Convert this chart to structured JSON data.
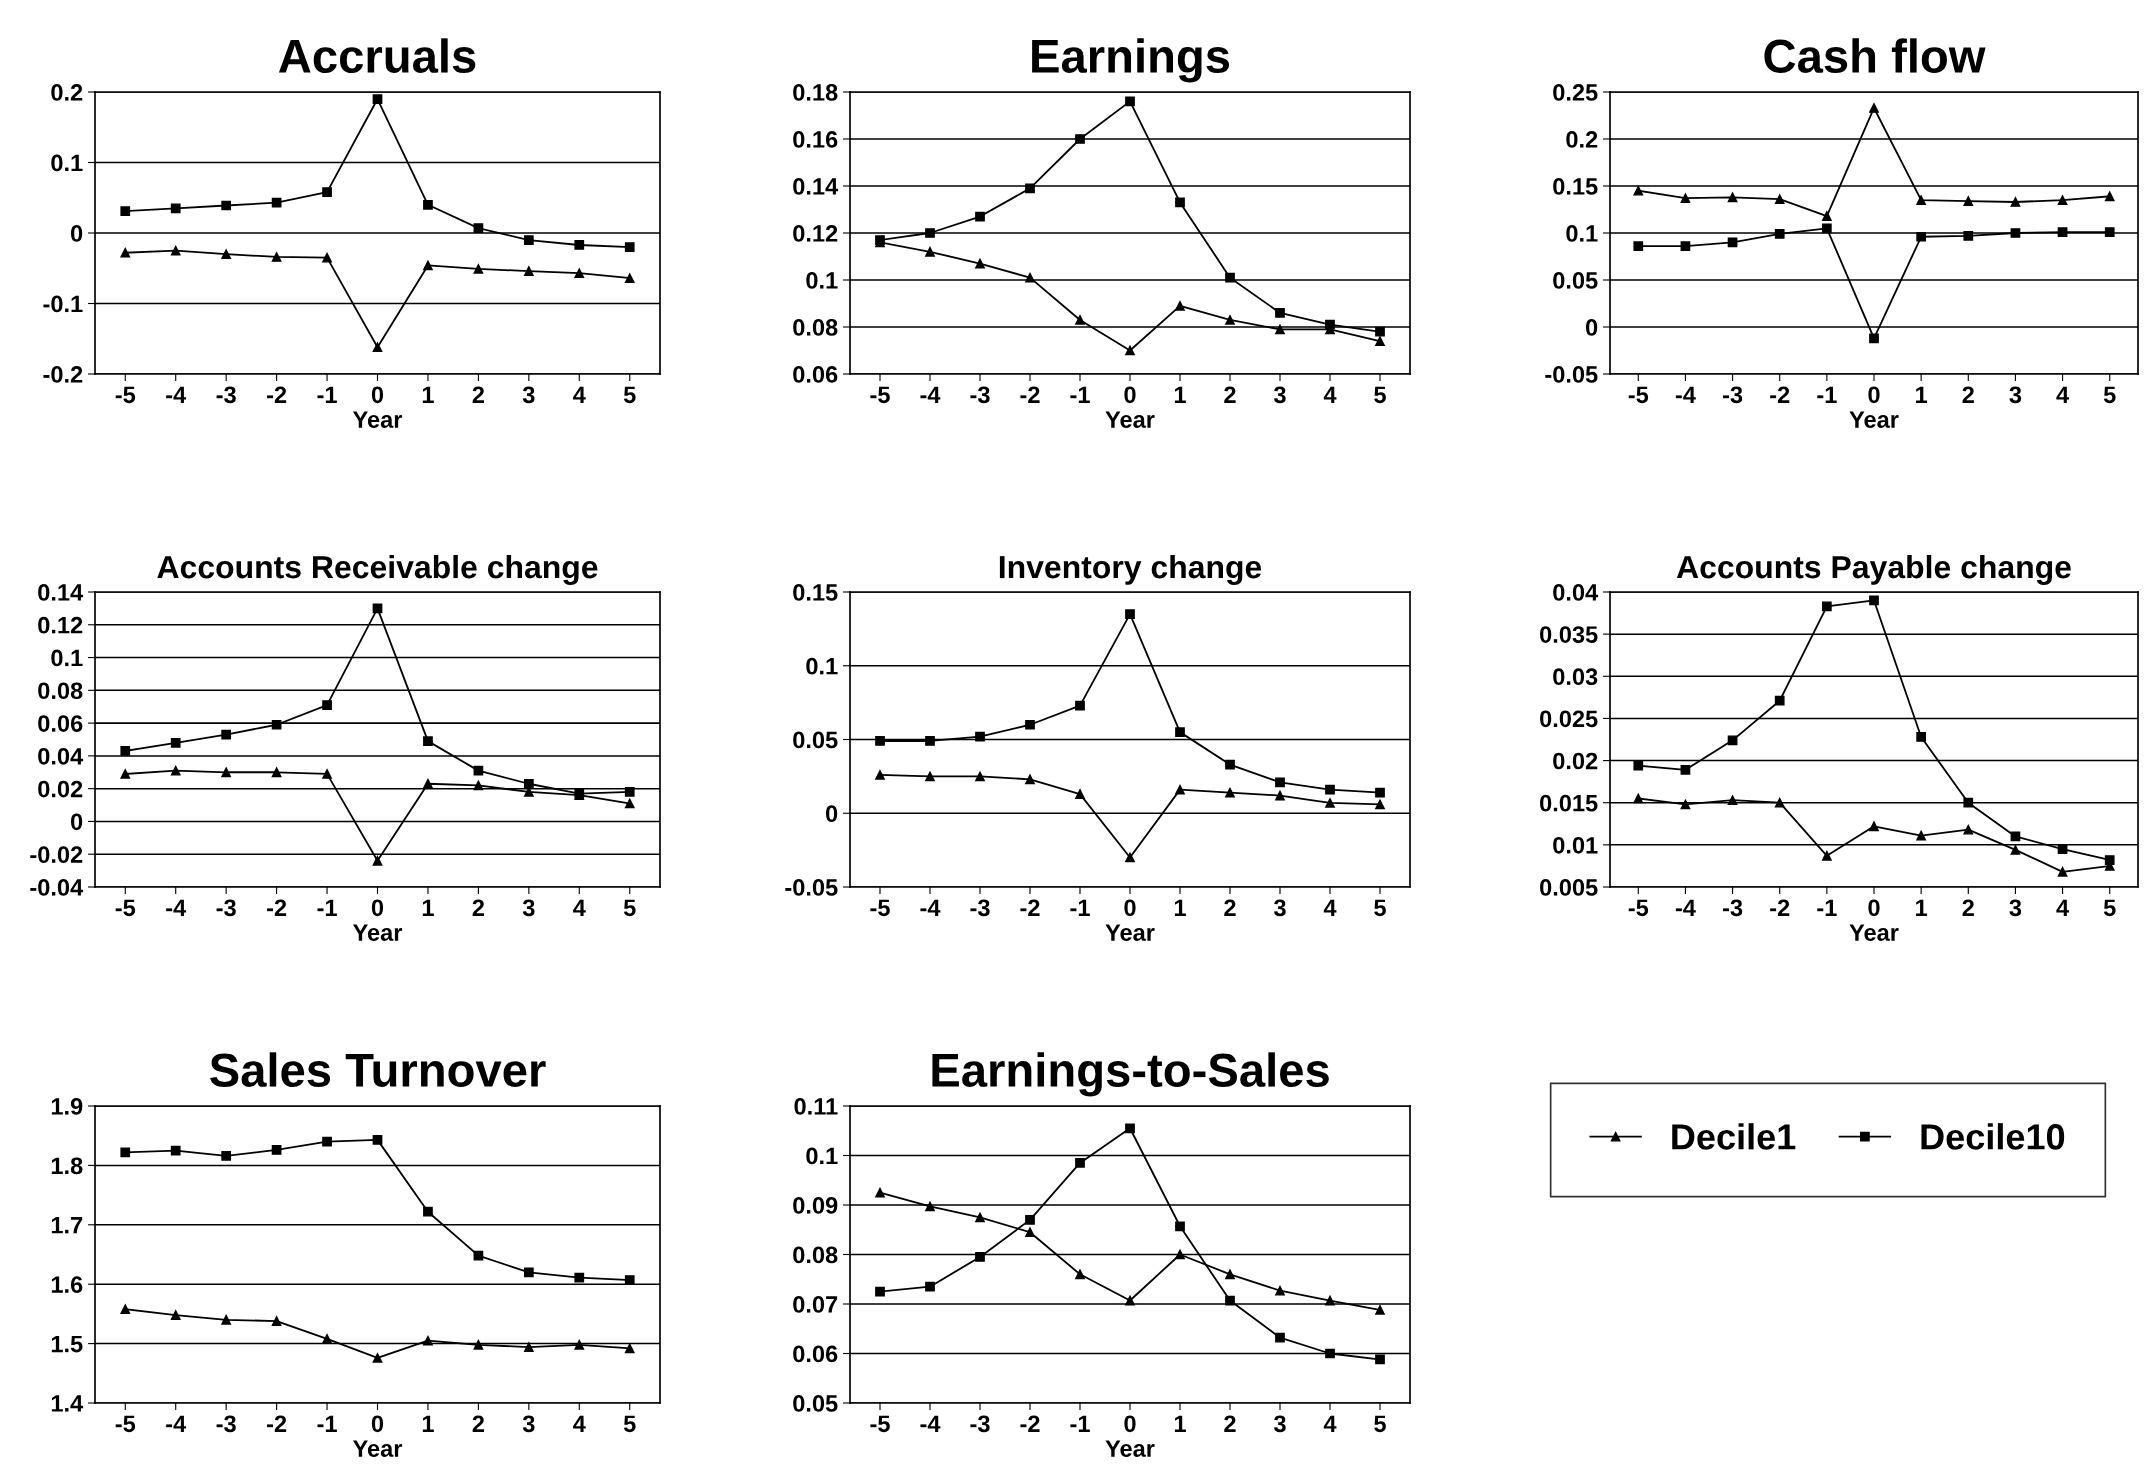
{
  "chart_data": [
    {
      "type": "line",
      "title": "Accruals",
      "xlabel": "Year",
      "categories": [
        "-5",
        "-4",
        "-3",
        "-2",
        "-1",
        "0",
        "1",
        "2",
        "3",
        "4",
        "5"
      ],
      "ylim": [
        -0.2,
        0.2
      ],
      "yticks": [
        -0.2,
        -0.1,
        0,
        0.1,
        0.2
      ],
      "grid": "y",
      "legend": "bottom right",
      "series": [
        {
          "name": "Decile1",
          "color": "#000000",
          "marker": "triangle",
          "values": [
            -0.028,
            -0.025,
            -0.03,
            -0.034,
            -0.035,
            -0.162,
            -0.046,
            -0.051,
            -0.054,
            -0.057,
            -0.064
          ]
        },
        {
          "name": "Decile10",
          "color": "#000000",
          "marker": "square",
          "values": [
            0.031,
            0.035,
            0.039,
            0.043,
            0.058,
            0.19,
            0.04,
            0.007,
            -0.01,
            -0.017,
            -0.02
          ]
        }
      ]
    },
    {
      "type": "line",
      "title": "Earnings",
      "xlabel": "Year",
      "categories": [
        "-5",
        "-4",
        "-3",
        "-2",
        "-1",
        "0",
        "1",
        "2",
        "3",
        "4",
        "5"
      ],
      "ylim": [
        0.06,
        0.18
      ],
      "yticks": [
        0.06,
        0.08,
        0.1,
        0.12,
        0.14,
        0.16,
        0.18
      ],
      "grid": "y",
      "series": [
        {
          "color": "#000000",
          "marker": "triangle",
          "values": [
            0.116,
            0.112,
            0.107,
            0.101,
            0.083,
            0.07,
            0.089,
            0.083,
            0.079,
            0.079,
            0.074
          ]
        },
        {
          "color": "#000000",
          "marker": "square",
          "values": [
            0.117,
            0.12,
            0.127,
            0.139,
            0.16,
            0.176,
            0.133,
            0.101,
            0.086,
            0.081,
            0.078
          ]
        }
      ]
    },
    {
      "type": "line",
      "title": "Cash flow",
      "xlabel": "Year",
      "categories": [
        "-5",
        "-4",
        "-3",
        "-2",
        "-1",
        "0",
        "1",
        "2",
        "3",
        "4",
        "5"
      ],
      "ylim": [
        -0.05,
        0.25
      ],
      "yticks": [
        -0.05,
        0,
        0.05,
        0.1,
        0.15,
        0.2,
        0.25
      ],
      "grid": "y",
      "series": [
        {
          "color": "#000000",
          "marker": "triangle",
          "values": [
            0.145,
            0.137,
            0.138,
            0.136,
            0.118,
            0.233,
            0.135,
            0.134,
            0.133,
            0.135,
            0.139
          ]
        },
        {
          "color": "#000000",
          "marker": "square",
          "values": [
            0.086,
            0.086,
            0.09,
            0.099,
            0.105,
            -0.012,
            0.096,
            0.097,
            0.1,
            0.101,
            0.101
          ]
        }
      ]
    },
    {
      "type": "line",
      "title": "Accounts Receivable change",
      "xlabel": "Year",
      "categories": [
        "-5",
        "-4",
        "-3",
        "-2",
        "-1",
        "0",
        "1",
        "2",
        "3",
        "4",
        "5"
      ],
      "ylim": [
        -0.04,
        0.14
      ],
      "yticks": [
        -0.04,
        -0.02,
        0,
        0.02,
        0.04,
        0.06,
        0.08,
        0.1,
        0.12,
        0.14
      ],
      "grid": "y",
      "series": [
        {
          "color": "#000000",
          "marker": "triangle",
          "values": [
            0.029,
            0.031,
            0.03,
            0.03,
            0.029,
            -0.024,
            0.023,
            0.022,
            0.018,
            0.016,
            0.011
          ]
        },
        {
          "color": "#000000",
          "marker": "square",
          "values": [
            0.043,
            0.048,
            0.053,
            0.059,
            0.071,
            0.13,
            0.049,
            0.031,
            0.023,
            0.017,
            0.018
          ]
        }
      ]
    },
    {
      "type": "line",
      "title": "Inventory change",
      "xlabel": "Year",
      "categories": [
        "-5",
        "-4",
        "-3",
        "-2",
        "-1",
        "0",
        "1",
        "2",
        "3",
        "4",
        "5"
      ],
      "ylim": [
        -0.05,
        0.15
      ],
      "yticks": [
        -0.05,
        0,
        0.05,
        0.1,
        0.15
      ],
      "grid": "y",
      "series": [
        {
          "color": "#000000",
          "marker": "triangle",
          "values": [
            0.026,
            0.025,
            0.025,
            0.023,
            0.013,
            -0.03,
            0.016,
            0.014,
            0.012,
            0.007,
            0.006
          ]
        },
        {
          "color": "#000000",
          "marker": "square",
          "values": [
            0.049,
            0.049,
            0.052,
            0.06,
            0.073,
            0.135,
            0.055,
            0.033,
            0.021,
            0.016,
            0.014
          ]
        }
      ]
    },
    {
      "type": "line",
      "title": "Accounts Payable change",
      "xlabel": "Year",
      "categories": [
        "-5",
        "-4",
        "-3",
        "-2",
        "-1",
        "0",
        "1",
        "2",
        "3",
        "4",
        "5"
      ],
      "ylim": [
        0.005,
        0.04
      ],
      "yticks": [
        0.005,
        0.01,
        0.015,
        0.02,
        0.025,
        0.03,
        0.035,
        0.04
      ],
      "grid": "y",
      "series": [
        {
          "color": "#000000",
          "marker": "triangle",
          "values": [
            0.0155,
            0.0148,
            0.0153,
            0.015,
            0.0087,
            0.0122,
            0.0111,
            0.0118,
            0.0094,
            0.0068,
            0.0075
          ]
        },
        {
          "color": "#000000",
          "marker": "square",
          "values": [
            0.0194,
            0.0189,
            0.0224,
            0.0271,
            0.0383,
            0.039,
            0.0228,
            0.015,
            0.011,
            0.0095,
            0.0082
          ]
        }
      ]
    },
    {
      "type": "line",
      "title": "Sales Turnover",
      "xlabel": "Year",
      "categories": [
        "-5",
        "-4",
        "-3",
        "-2",
        "-1",
        "0",
        "1",
        "2",
        "3",
        "4",
        "5"
      ],
      "ylim": [
        1.4,
        1.9
      ],
      "yticks": [
        1.4,
        1.5,
        1.6,
        1.7,
        1.8,
        1.9
      ],
      "grid": "y",
      "series": [
        {
          "color": "#000000",
          "marker": "triangle",
          "values": [
            1.558,
            1.548,
            1.54,
            1.538,
            1.508,
            1.476,
            1.505,
            1.498,
            1.494,
            1.498,
            1.492
          ]
        },
        {
          "color": "#000000",
          "marker": "square",
          "values": [
            1.822,
            1.825,
            1.816,
            1.826,
            1.84,
            1.843,
            1.722,
            1.648,
            1.62,
            1.611,
            1.607
          ]
        }
      ]
    },
    {
      "type": "line",
      "title": "Earnings-to-Sales",
      "xlabel": "Year",
      "categories": [
        "-5",
        "-4",
        "-3",
        "-2",
        "-1",
        "0",
        "1",
        "2",
        "3",
        "4",
        "5"
      ],
      "ylim": [
        0.05,
        0.11
      ],
      "yticks": [
        0.05,
        0.06,
        0.07,
        0.08,
        0.09,
        0.1,
        0.11
      ],
      "grid": "y",
      "series": [
        {
          "color": "#000000",
          "marker": "triangle",
          "values": [
            0.0925,
            0.0897,
            0.0875,
            0.0845,
            0.076,
            0.0707,
            0.08,
            0.076,
            0.0727,
            0.0707,
            0.0688
          ]
        },
        {
          "color": "#000000",
          "marker": "square",
          "values": [
            0.0725,
            0.0735,
            0.0795,
            0.087,
            0.0985,
            0.1055,
            0.0857,
            0.0707,
            0.0632,
            0.06,
            0.0588
          ]
        }
      ]
    }
  ]
}
